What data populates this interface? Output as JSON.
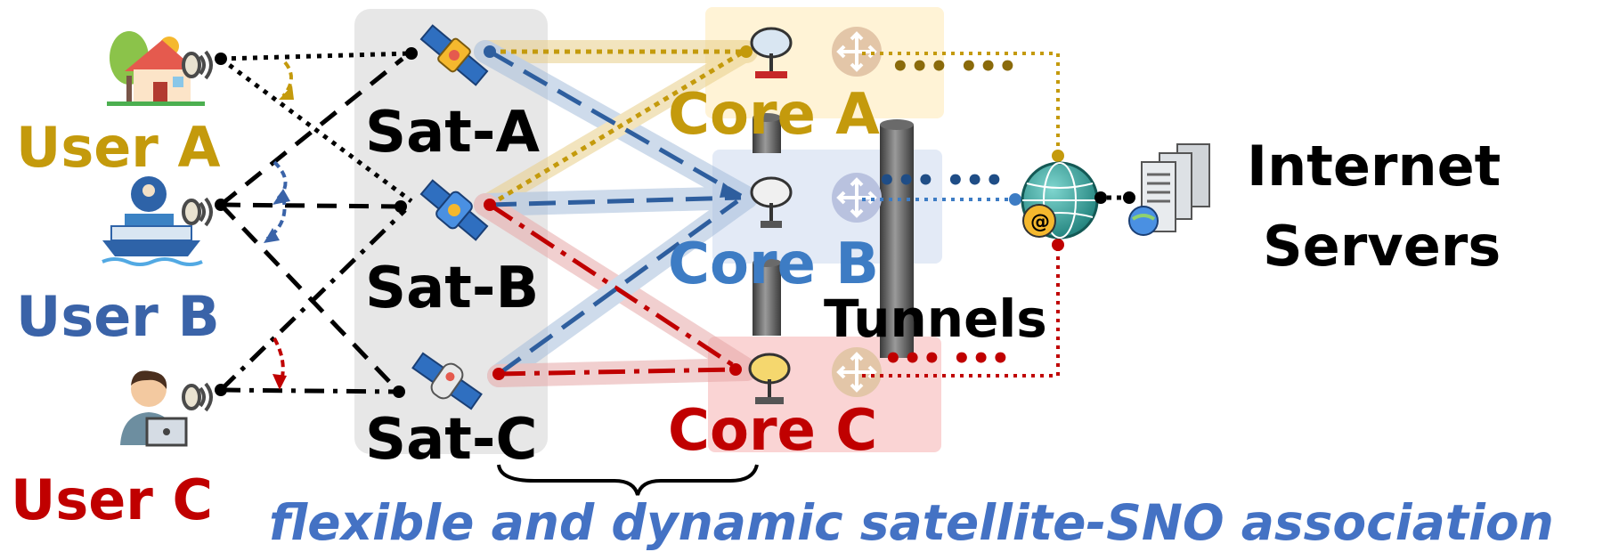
{
  "users": [
    {
      "id": "a",
      "label": "User A",
      "color": "#C49A0C",
      "icon": "house-icon"
    },
    {
      "id": "b",
      "label": "User B",
      "color": "#3A63A8",
      "icon": "ship-icon"
    },
    {
      "id": "c",
      "label": "User C",
      "color": "#C00000",
      "icon": "laptop-user-icon"
    }
  ],
  "satellites": [
    {
      "id": "a",
      "label": "Sat-A",
      "icon": "satellite-icon"
    },
    {
      "id": "b",
      "label": "Sat-B",
      "icon": "satellite-icon"
    },
    {
      "id": "c",
      "label": "Sat-C",
      "icon": "satellite-icon"
    }
  ],
  "cores": [
    {
      "id": "a",
      "label": "Core A",
      "color": "#C49A0C",
      "fill": "#FFF3D6",
      "icon": "ground-station-icon"
    },
    {
      "id": "b",
      "label": "Core B",
      "color": "#3D7CC4",
      "fill": "#E3EAF6",
      "icon": "ground-station-icon"
    },
    {
      "id": "c",
      "label": "Core C",
      "color": "#C00000",
      "fill": "#FAD4D4",
      "icon": "ground-station-icon"
    }
  ],
  "tunnels_label": "Tunnels",
  "internet": {
    "line1": "Internet",
    "line2": "Servers",
    "icon": "server-rack-icon"
  },
  "caption": "flexible and dynamic satellite-SNO association",
  "colors": {
    "caption": "#4472C4",
    "sat_panel": "#E7E7E7",
    "router": "#E3C6A8",
    "router_b": "#B9C2DF",
    "globe": "#1E8F8A",
    "link_a": "#C49A0C",
    "link_b": "#2E5E9E",
    "link_c": "#C00000"
  }
}
